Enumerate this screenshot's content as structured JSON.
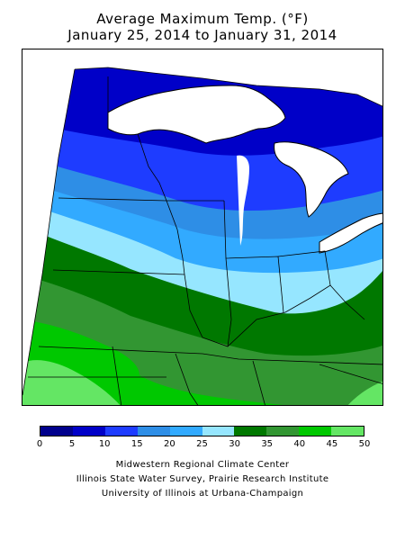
{
  "title": {
    "line1": "Average Maximum Temp. (°F)",
    "line2": "January 25, 2014 to January 31, 2014"
  },
  "legend": {
    "colors": [
      "#00008c",
      "#0000c8",
      "#1e3cff",
      "#2e8ee6",
      "#32aaff",
      "#96e6ff",
      "#007800",
      "#329632",
      "#00c800",
      "#64e664"
    ],
    "ticks": [
      "0",
      "5",
      "10",
      "15",
      "20",
      "25",
      "30",
      "35",
      "40",
      "45",
      "50"
    ]
  },
  "map": {
    "bands": [
      {
        "range": "5-10",
        "color": "#0000c8"
      },
      {
        "range": "10-15",
        "color": "#1e3cff"
      },
      {
        "range": "15-20",
        "color": "#2e8ee6"
      },
      {
        "range": "20-25",
        "color": "#32aaff"
      },
      {
        "range": "25-30",
        "color": "#96e6ff"
      },
      {
        "range": "30-35",
        "color": "#007800"
      },
      {
        "range": "35-40",
        "color": "#329632"
      },
      {
        "range": "40-45",
        "color": "#00c800"
      },
      {
        "range": "45-50",
        "color": "#64e664"
      }
    ],
    "lake_color": "#ffffff",
    "outside_color": "#ffffff"
  },
  "credits": {
    "line1": "Midwestern Regional Climate Center",
    "line2": "Illinois State Water Survey, Prairie Research Institute",
    "line3": "University of Illinois at Urbana-Champaign"
  }
}
